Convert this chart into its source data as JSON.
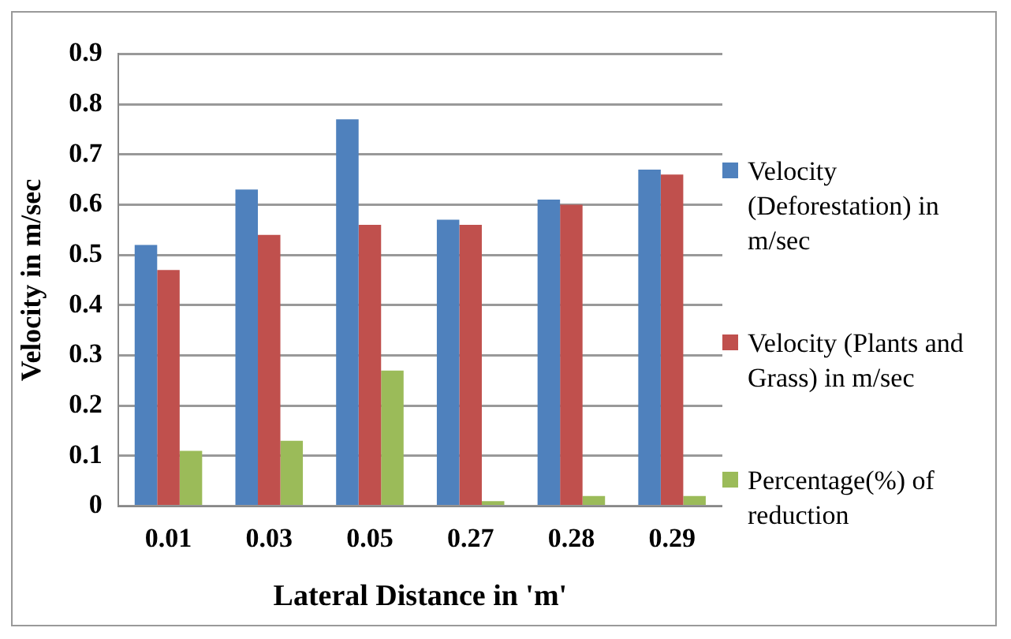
{
  "chart_data": {
    "type": "bar",
    "xlabel": "Lateral Distance in 'm'",
    "ylabel": "Velocity in m/sec",
    "categories": [
      "0.01",
      "0.03",
      "0.05",
      "0.27",
      "0.28",
      "0.29"
    ],
    "series": [
      {
        "name": "Velocity (Deforestation) in m/sec",
        "color": "#4f81bd",
        "values": [
          0.52,
          0.63,
          0.77,
          0.57,
          0.61,
          0.67
        ]
      },
      {
        "name": "Velocity (Plants and Grass) in m/sec",
        "color": "#c0504d",
        "values": [
          0.47,
          0.54,
          0.56,
          0.56,
          0.6,
          0.66
        ]
      },
      {
        "name": "Percentage(%) of reduction",
        "color": "#9bbb59",
        "values": [
          0.11,
          0.13,
          0.27,
          0.01,
          0.02,
          0.02
        ]
      }
    ],
    "ylim": [
      0,
      0.9
    ],
    "yticks": [
      0,
      0.1,
      0.2,
      0.3,
      0.4,
      0.5,
      0.6,
      0.7,
      0.8,
      0.9
    ],
    "grid": "y",
    "legend": "right"
  }
}
